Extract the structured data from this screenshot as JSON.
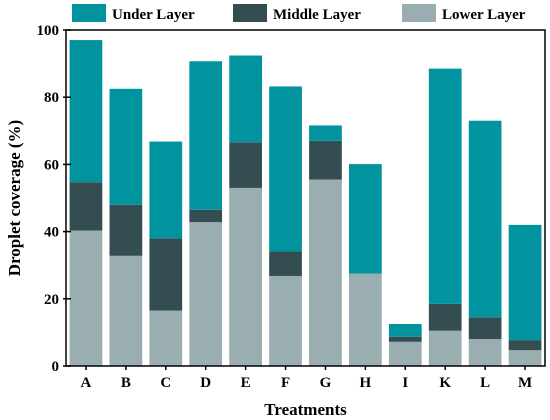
{
  "chart_data": {
    "type": "bar",
    "stacked": true,
    "categories": [
      "A",
      "B",
      "C",
      "D",
      "E",
      "F",
      "G",
      "H",
      "I",
      "K",
      "L",
      "M"
    ],
    "series": [
      {
        "name": "Lower Layer",
        "color": "#9aaeb2",
        "values": [
          40.3,
          32.8,
          16.5,
          42.8,
          53.0,
          26.8,
          55.5,
          27.5,
          7.2,
          10.5,
          8.0,
          4.7
        ]
      },
      {
        "name": "Middle Layer",
        "color": "#344d51",
        "values": [
          14.4,
          15.2,
          21.5,
          3.7,
          13.6,
          7.3,
          11.5,
          0.0,
          1.5,
          8.0,
          6.5,
          3.0
        ]
      },
      {
        "name": "Under Layer",
        "color": "#01939e",
        "values": [
          42.3,
          34.5,
          28.8,
          44.2,
          25.8,
          49.1,
          4.6,
          32.6,
          3.8,
          70.0,
          58.5,
          34.3
        ]
      }
    ],
    "legend_order": [
      "Under Layer",
      "Middle Layer",
      "Lower Layer"
    ],
    "legend_position": "top",
    "xlabel": "Treatments",
    "ylabel": "Droplet coverage (%)",
    "ylim": [
      0,
      100
    ],
    "yticks": [
      0,
      20,
      40,
      60,
      80,
      100
    ],
    "grid": false
  }
}
